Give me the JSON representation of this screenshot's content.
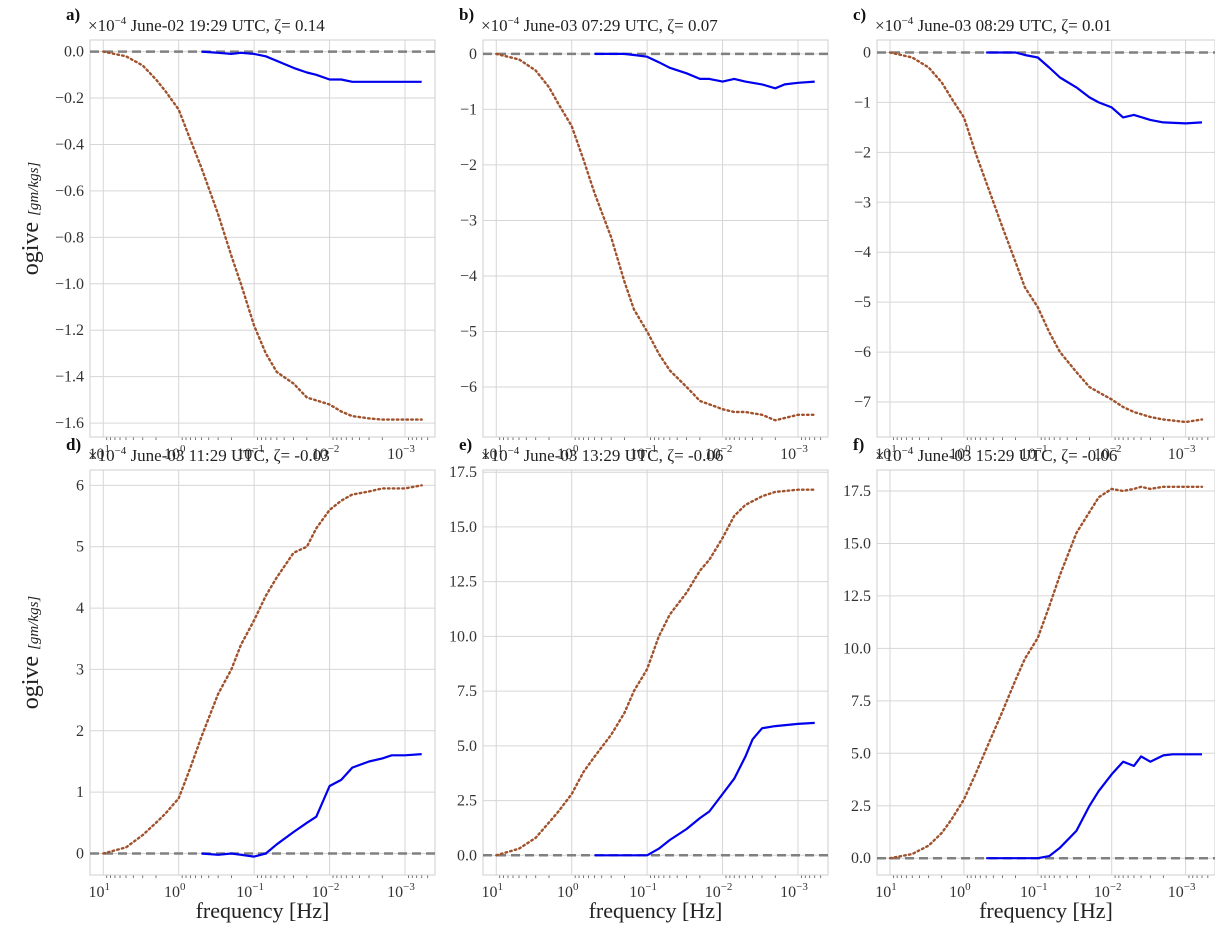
{
  "figure": {
    "xlabel": "frequency [Hz]",
    "ylabel": "ogive",
    "ylabel_unit": "[gm/kgs]",
    "x_tick_labels": [
      "10^1",
      "10^0",
      "10^-1",
      "10^-2",
      "10^-3"
    ],
    "exponent_label": "×10^-4"
  },
  "chart_data": [
    {
      "panel": "a)",
      "type": "line",
      "title": "June-02 19:29 UTC, ζ= 0.14",
      "exponent": "×10^-4",
      "x_scale": "log-reversed",
      "xlim": [
        15,
        0.0004
      ],
      "ylim": [
        -1.66,
        0.05
      ],
      "yticks": [
        0.0,
        -0.2,
        -0.4,
        -0.6,
        -0.8,
        -1.0,
        -1.2,
        -1.4,
        -1.6
      ],
      "ytick_labels": [
        "0.0",
        "−0.2",
        "−0.4",
        "−0.6",
        "−0.8",
        "−1.0",
        "−1.2",
        "−1.4",
        "−1.6"
      ],
      "zero_line": true,
      "series": [
        {
          "style": "dotted",
          "color": "#a0522d",
          "x": [
            10,
            5,
            3,
            2,
            1.5,
            1,
            0.7,
            0.5,
            0.3,
            0.2,
            0.15,
            0.1,
            0.07,
            0.05,
            0.03,
            0.02,
            0.01,
            0.007,
            0.005,
            0.003,
            0.002,
            0.001,
            0.0006
          ],
          "y": [
            0,
            -0.02,
            -0.06,
            -0.12,
            -0.17,
            -0.25,
            -0.38,
            -0.5,
            -0.7,
            -0.88,
            -1.0,
            -1.18,
            -1.3,
            -1.38,
            -1.43,
            -1.49,
            -1.52,
            -1.55,
            -1.57,
            -1.58,
            -1.585,
            -1.585,
            -1.585
          ]
        },
        {
          "style": "solid",
          "color": "#0000ee",
          "x": [
            0.5,
            0.3,
            0.2,
            0.15,
            0.1,
            0.07,
            0.05,
            0.03,
            0.02,
            0.015,
            0.01,
            0.007,
            0.005,
            0.003,
            0.002,
            0.001,
            0.0006
          ],
          "y": [
            0,
            -0.005,
            -0.01,
            -0.005,
            -0.01,
            -0.02,
            -0.04,
            -0.07,
            -0.09,
            -0.1,
            -0.12,
            -0.12,
            -0.13,
            -0.13,
            -0.13,
            -0.13,
            -0.13
          ]
        }
      ]
    },
    {
      "panel": "b)",
      "type": "line",
      "title": "June-03 07:29 UTC, ζ= 0.07",
      "exponent": "×10^-4",
      "x_scale": "log-reversed",
      "xlim": [
        15,
        0.0004
      ],
      "ylim": [
        -6.9,
        0.25
      ],
      "yticks": [
        0,
        -1,
        -2,
        -3,
        -4,
        -5,
        -6
      ],
      "ytick_labels": [
        "0",
        "−1",
        "−2",
        "−3",
        "−4",
        "−5",
        "−6"
      ],
      "zero_line": true,
      "series": [
        {
          "style": "dotted",
          "color": "#a0522d",
          "x": [
            10,
            5,
            3,
            2,
            1.5,
            1,
            0.7,
            0.5,
            0.3,
            0.2,
            0.15,
            0.1,
            0.07,
            0.05,
            0.03,
            0.02,
            0.01,
            0.007,
            0.005,
            0.003,
            0.002,
            0.001,
            0.0006
          ],
          "y": [
            0,
            -0.1,
            -0.3,
            -0.6,
            -0.9,
            -1.3,
            -1.9,
            -2.5,
            -3.3,
            -4.1,
            -4.6,
            -5.0,
            -5.4,
            -5.7,
            -6.0,
            -6.25,
            -6.4,
            -6.45,
            -6.45,
            -6.5,
            -6.6,
            -6.5,
            -6.5
          ]
        },
        {
          "style": "solid",
          "color": "#0000ee",
          "x": [
            0.5,
            0.3,
            0.2,
            0.15,
            0.1,
            0.07,
            0.05,
            0.03,
            0.02,
            0.015,
            0.01,
            0.007,
            0.005,
            0.003,
            0.002,
            0.0015,
            0.001,
            0.0006
          ],
          "y": [
            0,
            0,
            0,
            -0.02,
            -0.05,
            -0.15,
            -0.25,
            -0.35,
            -0.45,
            -0.45,
            -0.5,
            -0.45,
            -0.5,
            -0.55,
            -0.62,
            -0.55,
            -0.52,
            -0.5
          ]
        }
      ]
    },
    {
      "panel": "c)",
      "type": "line",
      "title": "June-03 08:29 UTC, ζ= 0.01",
      "exponent": "×10^-4",
      "x_scale": "log-reversed",
      "xlim": [
        15,
        0.0004
      ],
      "ylim": [
        -7.7,
        0.25
      ],
      "yticks": [
        0,
        -1,
        -2,
        -3,
        -4,
        -5,
        -6,
        -7
      ],
      "ytick_labels": [
        "0",
        "−1",
        "−2",
        "−3",
        "−4",
        "−5",
        "−6",
        "−7"
      ],
      "zero_line": true,
      "series": [
        {
          "style": "dotted",
          "color": "#a0522d",
          "x": [
            10,
            5,
            3,
            2,
            1.5,
            1,
            0.7,
            0.5,
            0.3,
            0.2,
            0.15,
            0.1,
            0.07,
            0.05,
            0.03,
            0.02,
            0.01,
            0.007,
            0.005,
            0.003,
            0.002,
            0.001,
            0.0006
          ],
          "y": [
            0,
            -0.1,
            -0.3,
            -0.6,
            -0.9,
            -1.3,
            -2.0,
            -2.6,
            -3.5,
            -4.2,
            -4.7,
            -5.1,
            -5.6,
            -6.0,
            -6.4,
            -6.7,
            -6.95,
            -7.1,
            -7.2,
            -7.3,
            -7.35,
            -7.4,
            -7.35
          ]
        },
        {
          "style": "solid",
          "color": "#0000ee",
          "x": [
            0.5,
            0.3,
            0.2,
            0.15,
            0.1,
            0.07,
            0.05,
            0.03,
            0.02,
            0.015,
            0.01,
            0.007,
            0.005,
            0.003,
            0.002,
            0.001,
            0.0006
          ],
          "y": [
            0,
            0,
            0,
            -0.05,
            -0.1,
            -0.3,
            -0.5,
            -0.7,
            -0.9,
            -1.0,
            -1.1,
            -1.3,
            -1.25,
            -1.35,
            -1.4,
            -1.42,
            -1.4
          ]
        }
      ]
    },
    {
      "panel": "d)",
      "type": "line",
      "title": "June-03 11:29 UTC, ζ= -0.03",
      "exponent": "×10^-4",
      "x_scale": "log-reversed",
      "xlim": [
        15,
        0.0004
      ],
      "ylim": [
        -0.35,
        6.25
      ],
      "yticks": [
        0,
        1,
        2,
        3,
        4,
        5,
        6
      ],
      "ytick_labels": [
        "0",
        "1",
        "2",
        "3",
        "4",
        "5",
        "6"
      ],
      "zero_line": true,
      "series": [
        {
          "style": "dotted",
          "color": "#a0522d",
          "x": [
            10,
            5,
            3,
            2,
            1.5,
            1,
            0.7,
            0.5,
            0.3,
            0.2,
            0.15,
            0.1,
            0.07,
            0.05,
            0.03,
            0.02,
            0.015,
            0.01,
            0.007,
            0.005,
            0.003,
            0.002,
            0.001,
            0.0006
          ],
          "y": [
            0,
            0.1,
            0.3,
            0.5,
            0.65,
            0.9,
            1.4,
            1.9,
            2.6,
            3.0,
            3.4,
            3.8,
            4.2,
            4.5,
            4.9,
            5.0,
            5.3,
            5.6,
            5.75,
            5.85,
            5.9,
            5.95,
            5.95,
            6.0
          ]
        },
        {
          "style": "solid",
          "color": "#0000ee",
          "x": [
            0.5,
            0.3,
            0.2,
            0.15,
            0.1,
            0.07,
            0.05,
            0.03,
            0.02,
            0.015,
            0.01,
            0.007,
            0.005,
            0.003,
            0.002,
            0.0015,
            0.001,
            0.0006
          ],
          "y": [
            0,
            -0.02,
            0,
            -0.02,
            -0.05,
            0,
            0.15,
            0.35,
            0.5,
            0.6,
            1.1,
            1.2,
            1.4,
            1.5,
            1.55,
            1.6,
            1.6,
            1.62
          ]
        }
      ]
    },
    {
      "panel": "e)",
      "type": "line",
      "title": "June-03 13:29 UTC, ζ= -0.06",
      "exponent": "×10^-4",
      "x_scale": "log-reversed",
      "xlim": [
        15,
        0.0004
      ],
      "ylim": [
        -0.9,
        17.6
      ],
      "yticks": [
        0.0,
        2.5,
        5.0,
        7.5,
        10.0,
        12.5,
        15.0,
        17.5
      ],
      "ytick_labels": [
        "0.0",
        "2.5",
        "5.0",
        "7.5",
        "10.0",
        "12.5",
        "15.0",
        "17.5"
      ],
      "zero_line": true,
      "series": [
        {
          "style": "dotted",
          "color": "#a0522d",
          "x": [
            10,
            5,
            3,
            2,
            1.5,
            1,
            0.7,
            0.5,
            0.3,
            0.2,
            0.15,
            0.1,
            0.07,
            0.05,
            0.03,
            0.02,
            0.015,
            0.01,
            0.007,
            0.005,
            0.003,
            0.002,
            0.001,
            0.0006
          ],
          "y": [
            0,
            0.3,
            0.8,
            1.5,
            2.0,
            2.8,
            3.8,
            4.5,
            5.5,
            6.5,
            7.5,
            8.5,
            10.0,
            11.0,
            12.0,
            13.0,
            13.5,
            14.5,
            15.5,
            16.0,
            16.4,
            16.6,
            16.7,
            16.7
          ]
        },
        {
          "style": "solid",
          "color": "#0000ee",
          "x": [
            0.5,
            0.3,
            0.2,
            0.15,
            0.1,
            0.07,
            0.05,
            0.03,
            0.02,
            0.015,
            0.01,
            0.007,
            0.005,
            0.004,
            0.003,
            0.002,
            0.001,
            0.0006
          ],
          "y": [
            0,
            0,
            0,
            0,
            0,
            0.3,
            0.7,
            1.2,
            1.7,
            2.0,
            2.8,
            3.5,
            4.5,
            5.3,
            5.8,
            5.9,
            6.0,
            6.05
          ]
        }
      ]
    },
    {
      "panel": "f)",
      "type": "line",
      "title": "June-03 15:29 UTC, ζ= -0.06",
      "exponent": "×10^-4",
      "x_scale": "log-reversed",
      "xlim": [
        15,
        0.0004
      ],
      "ylim": [
        -0.8,
        18.5
      ],
      "yticks": [
        0.0,
        2.5,
        5.0,
        7.5,
        10.0,
        12.5,
        15.0,
        17.5
      ],
      "ytick_labels": [
        "0.0",
        "2.5",
        "5.0",
        "7.5",
        "10.0",
        "12.5",
        "15.0",
        "17.5"
      ],
      "zero_line": true,
      "series": [
        {
          "style": "dotted",
          "color": "#a0522d",
          "x": [
            10,
            5,
            3,
            2,
            1.5,
            1,
            0.7,
            0.5,
            0.3,
            0.2,
            0.15,
            0.1,
            0.07,
            0.05,
            0.03,
            0.02,
            0.015,
            0.01,
            0.007,
            0.005,
            0.004,
            0.003,
            0.002,
            0.001,
            0.0006
          ],
          "y": [
            0,
            0.2,
            0.6,
            1.2,
            1.8,
            2.8,
            4.0,
            5.2,
            7.0,
            8.5,
            9.5,
            10.5,
            12.0,
            13.5,
            15.5,
            16.5,
            17.2,
            17.6,
            17.5,
            17.6,
            17.7,
            17.6,
            17.7,
            17.7,
            17.7
          ]
        },
        {
          "style": "solid",
          "color": "#0000ee",
          "x": [
            0.5,
            0.3,
            0.2,
            0.15,
            0.1,
            0.07,
            0.05,
            0.03,
            0.02,
            0.015,
            0.01,
            0.007,
            0.005,
            0.004,
            0.003,
            0.002,
            0.0015,
            0.001,
            0.0006
          ],
          "y": [
            0,
            0,
            0,
            0,
            0,
            0.1,
            0.5,
            1.3,
            2.5,
            3.2,
            4.0,
            4.6,
            4.4,
            4.85,
            4.6,
            4.9,
            4.95,
            4.95,
            4.95
          ]
        }
      ]
    }
  ]
}
